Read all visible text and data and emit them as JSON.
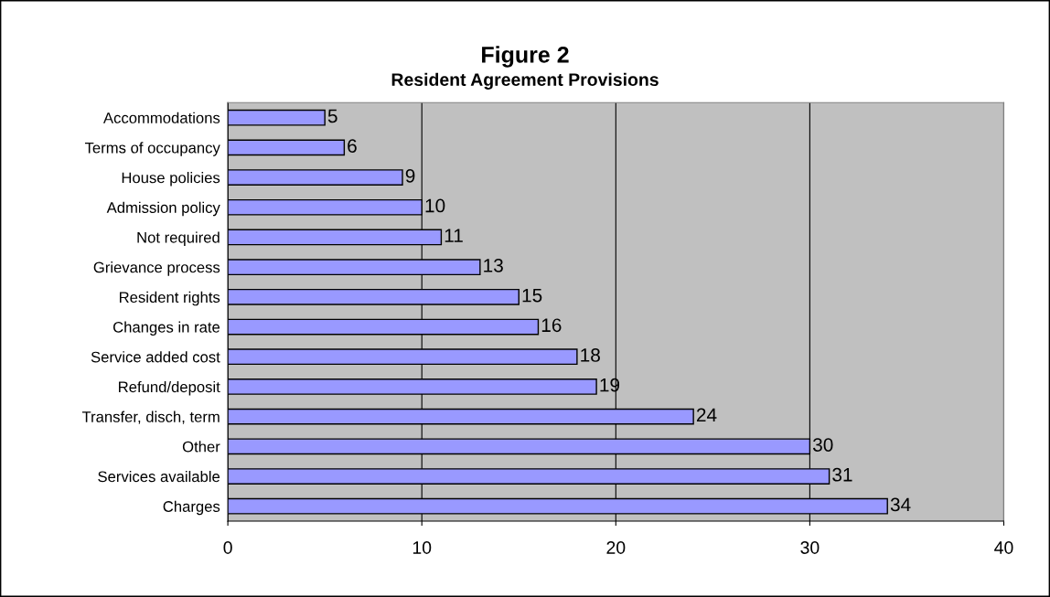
{
  "chart_data": {
    "type": "bar",
    "orientation": "horizontal",
    "title": "Figure 2",
    "subtitle": "Resident Agreement Provisions",
    "categories": [
      "Accommodations",
      "Terms of occupancy",
      "House policies",
      "Admission policy",
      "Not required",
      "Grievance process",
      "Resident rights",
      "Changes in rate",
      "Service added cost",
      "Refund/deposit",
      "Transfer, disch, term",
      "Other",
      "Services available",
      "Charges"
    ],
    "values": [
      5,
      6,
      9,
      10,
      11,
      13,
      15,
      16,
      18,
      19,
      24,
      30,
      31,
      34
    ],
    "color": "#9999ff",
    "data_labels": true,
    "xlim": [
      0,
      40
    ],
    "xticks": [
      0,
      10,
      20,
      30,
      40
    ],
    "grid": "x",
    "legend": false
  }
}
